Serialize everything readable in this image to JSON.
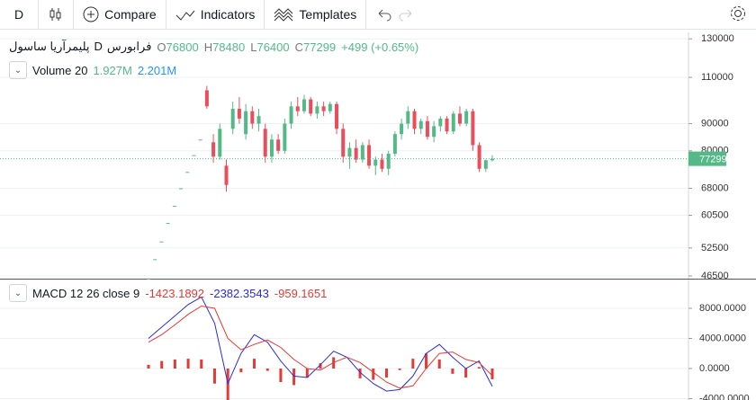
{
  "toolbar": {
    "interval": "D",
    "compare": "Compare",
    "indicators": "Indicators",
    "templates": "Templates"
  },
  "chart_data": [
    {
      "type": "candlestick",
      "symbol": "پلیمرآریا ساسول",
      "interval": "D",
      "exchange": "فرابورس",
      "ohlc_labels": [
        "O",
        "H",
        "L",
        "C"
      ],
      "change": "+499 (+0.65%)",
      "volume_title": "Volume 20",
      "volume_values": [
        "1.927M",
        "2.201M"
      ],
      "up_color": "#53b987",
      "down_color": "#eb4d5c",
      "yscale": "log",
      "ylim": [
        45960,
        133700
      ],
      "yticks": [
        130000,
        110000,
        90000,
        80000,
        68000,
        60500,
        52500,
        46500
      ],
      "grid": true,
      "candles": [
        [
          46000,
          46000,
          46000,
          46000
        ],
        [
          50000,
          50000,
          50000,
          50000
        ],
        [
          54000,
          54000,
          54000,
          54000
        ],
        [
          58500,
          58500,
          58500,
          58500
        ],
        [
          63000,
          63000,
          63000,
          63000
        ],
        [
          68000,
          68000,
          68000,
          68000
        ],
        [
          73000,
          73000,
          73000,
          73000
        ],
        [
          78500,
          78500,
          78500,
          78500
        ],
        [
          84000,
          84000,
          84000,
          84000
        ],
        [
          104000,
          106000,
          96000,
          97000
        ],
        [
          83000,
          86000,
          76000,
          78000
        ],
        [
          78000,
          90000,
          77000,
          88000
        ],
        [
          75000,
          77000,
          67000,
          69000
        ],
        [
          88000,
          99000,
          86000,
          96000
        ],
        [
          96000,
          101000,
          90000,
          92000
        ],
        [
          86000,
          98000,
          84000,
          95000
        ],
        [
          95000,
          97000,
          88000,
          90000
        ],
        [
          90000,
          96000,
          87000,
          93000
        ],
        [
          88000,
          90000,
          76000,
          78000
        ],
        [
          78000,
          86000,
          76000,
          84000
        ],
        [
          84000,
          86000,
          79000,
          80000
        ],
        [
          80000,
          92000,
          79000,
          90000
        ],
        [
          90000,
          99000,
          88000,
          97000
        ],
        [
          97000,
          101000,
          93000,
          95000
        ],
        [
          95000,
          102000,
          94000,
          100000
        ],
        [
          100000,
          101000,
          93000,
          94000
        ],
        [
          94000,
          99000,
          92000,
          97000
        ],
        [
          97000,
          99000,
          93000,
          95000
        ],
        [
          95000,
          99000,
          94000,
          98000
        ],
        [
          98000,
          99000,
          86000,
          88000
        ],
        [
          88000,
          90000,
          76000,
          78000
        ],
        [
          78000,
          83000,
          74000,
          81000
        ],
        [
          81000,
          84000,
          76000,
          77000
        ],
        [
          77000,
          83000,
          76000,
          82000
        ],
        [
          82000,
          84000,
          74000,
          75000
        ],
        [
          75000,
          78000,
          72000,
          77000
        ],
        [
          77000,
          79000,
          73000,
          74000
        ],
        [
          74000,
          80000,
          72000,
          79000
        ],
        [
          79000,
          87000,
          78000,
          86000
        ],
        [
          86000,
          92000,
          84000,
          90000
        ],
        [
          90000,
          97000,
          88000,
          95000
        ],
        [
          95000,
          96000,
          86000,
          88000
        ],
        [
          88000,
          92000,
          86000,
          91000
        ],
        [
          91000,
          93000,
          84000,
          85000
        ],
        [
          85000,
          91000,
          83000,
          89000
        ],
        [
          89000,
          93000,
          87000,
          92000
        ],
        [
          92000,
          93000,
          86000,
          87000
        ],
        [
          87000,
          95000,
          86000,
          94000
        ],
        [
          94000,
          97000,
          89000,
          90000
        ],
        [
          90000,
          96000,
          89000,
          95000
        ],
        [
          95000,
          96000,
          80000,
          82000
        ],
        [
          82000,
          83000,
          73000,
          74000
        ],
        [
          74000,
          77000,
          73000,
          76800
        ],
        [
          76800,
          78480,
          76400,
          77299
        ]
      ]
    },
    {
      "type": "macd",
      "title": "MACD 12 26 close 9",
      "ylim": [
        -4180,
        11700
      ],
      "yticks": [
        {
          "value": 8000,
          "label": "8000.0000"
        },
        {
          "value": 4000,
          "label": "4000.0000"
        },
        {
          "value": 0,
          "label": "0.0000"
        },
        {
          "value": -4000,
          "label": "-4000.0000"
        }
      ],
      "series": [
        {
          "style": "histogram",
          "color": "#e53935",
          "values": [
            500,
            1000,
            1200,
            1300,
            1200,
            -2000,
            -6000,
            -500,
            1300,
            -300,
            -1800,
            -2200,
            -1200,
            700,
            1500,
            0,
            -1300,
            -1500,
            -1200,
            -200,
            1300,
            2000,
            1200,
            -700,
            -1200,
            200,
            -1423.1892
          ]
        },
        {
          "style": "line",
          "color": "#2a2ae0",
          "values": [
            4000,
            5500,
            7000,
            8500,
            9500,
            6000,
            -2000,
            2000,
            4500,
            3500,
            1000,
            -1000,
            -1200,
            500,
            2300,
            1500,
            -500,
            -2000,
            -3000,
            -2800,
            -1000,
            2000,
            3200,
            1500,
            0,
            1000,
            -2382.3543
          ]
        },
        {
          "style": "line",
          "color": "#e53935",
          "values": [
            3500,
            4500,
            5800,
            7200,
            8300,
            8000,
            4000,
            2500,
            3200,
            3800,
            2800,
            1200,
            0,
            -200,
            800,
            1500,
            800,
            -500,
            -1800,
            -2600,
            -2300,
            0,
            2000,
            2200,
            1200,
            800,
            -959.1651
          ]
        }
      ]
    }
  ]
}
